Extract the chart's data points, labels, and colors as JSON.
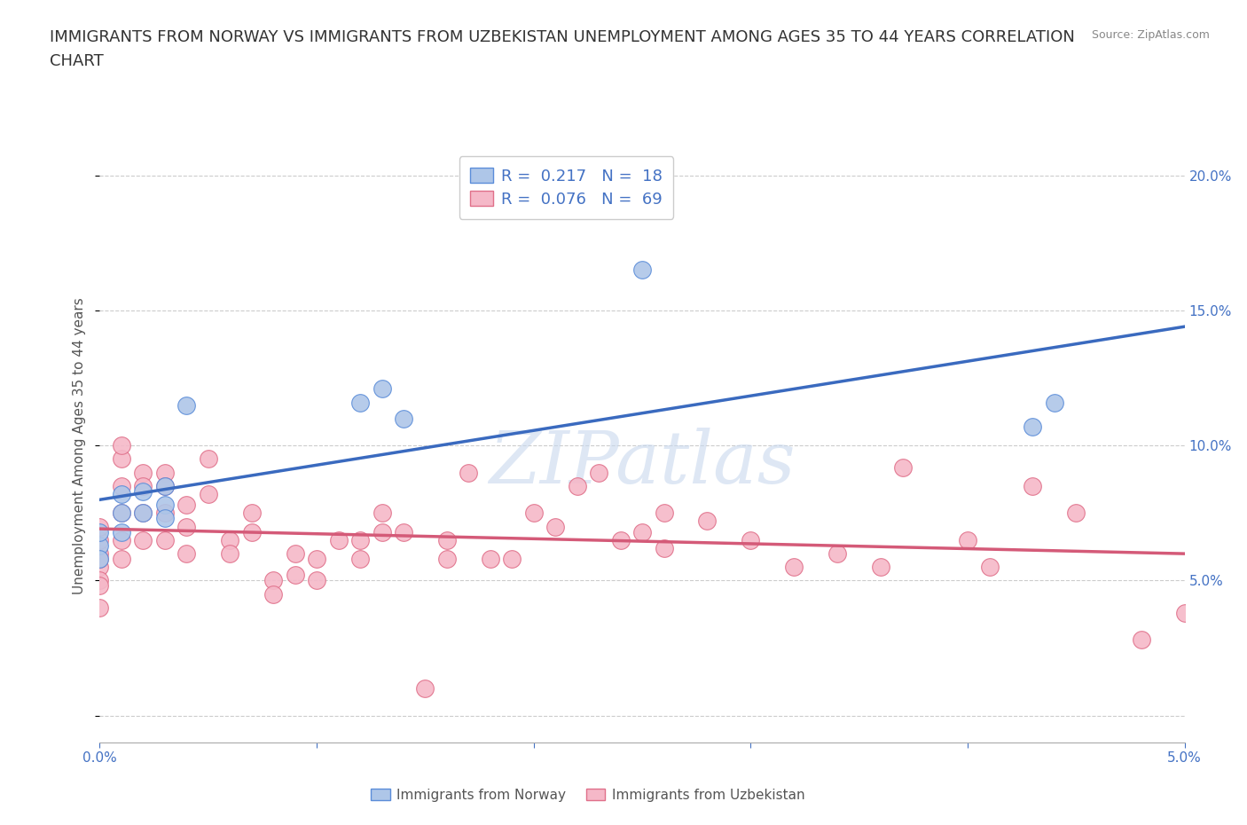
{
  "title_line1": "IMMIGRANTS FROM NORWAY VS IMMIGRANTS FROM UZBEKISTAN UNEMPLOYMENT AMONG AGES 35 TO 44 YEARS CORRELATION",
  "title_line2": "CHART",
  "source_text": "Source: ZipAtlas.com",
  "ylabel": "Unemployment Among Ages 35 to 44 years",
  "xlim": [
    0.0,
    0.05
  ],
  "ylim": [
    -0.01,
    0.21
  ],
  "xticks": [
    0.0,
    0.01,
    0.02,
    0.03,
    0.04,
    0.05
  ],
  "xtick_labels": [
    "0.0%",
    "",
    "",
    "",
    "",
    "5.0%"
  ],
  "yticks": [
    0.0,
    0.05,
    0.1,
    0.15,
    0.2
  ],
  "ytick_labels": [
    "",
    "5.0%",
    "10.0%",
    "15.0%",
    "20.0%"
  ],
  "norway_R": 0.217,
  "norway_N": 18,
  "uzbekistan_R": 0.076,
  "uzbekistan_N": 69,
  "norway_color": "#aec6e8",
  "norway_edge_color": "#5b8dd9",
  "norway_line_color": "#3a6abf",
  "uzbekistan_color": "#f5b8c8",
  "uzbekistan_edge_color": "#e0708a",
  "uzbekistan_line_color": "#d45a78",
  "legend_label_norway": "Immigrants from Norway",
  "legend_label_uzbekistan": "Immigrants from Uzbekistan",
  "norway_x": [
    0.0,
    0.0,
    0.0,
    0.001,
    0.001,
    0.001,
    0.002,
    0.002,
    0.003,
    0.003,
    0.003,
    0.004,
    0.012,
    0.013,
    0.014,
    0.025,
    0.043,
    0.044
  ],
  "norway_y": [
    0.063,
    0.068,
    0.058,
    0.075,
    0.082,
    0.068,
    0.083,
    0.075,
    0.078,
    0.085,
    0.073,
    0.115,
    0.116,
    0.121,
    0.11,
    0.165,
    0.107,
    0.116
  ],
  "uzbekistan_x": [
    0.0,
    0.0,
    0.0,
    0.0,
    0.0,
    0.0,
    0.0,
    0.0,
    0.001,
    0.001,
    0.001,
    0.001,
    0.001,
    0.001,
    0.002,
    0.002,
    0.002,
    0.002,
    0.003,
    0.003,
    0.003,
    0.003,
    0.004,
    0.004,
    0.004,
    0.005,
    0.005,
    0.006,
    0.006,
    0.007,
    0.007,
    0.008,
    0.008,
    0.009,
    0.009,
    0.01,
    0.01,
    0.011,
    0.012,
    0.012,
    0.013,
    0.013,
    0.014,
    0.015,
    0.016,
    0.016,
    0.017,
    0.018,
    0.019,
    0.02,
    0.021,
    0.022,
    0.023,
    0.024,
    0.025,
    0.026,
    0.026,
    0.028,
    0.03,
    0.032,
    0.034,
    0.036,
    0.037,
    0.04,
    0.041,
    0.043,
    0.045,
    0.048,
    0.05
  ],
  "uzbekistan_y": [
    0.06,
    0.065,
    0.07,
    0.055,
    0.05,
    0.058,
    0.048,
    0.04,
    0.095,
    0.1,
    0.085,
    0.075,
    0.065,
    0.058,
    0.09,
    0.085,
    0.075,
    0.065,
    0.09,
    0.085,
    0.075,
    0.065,
    0.078,
    0.07,
    0.06,
    0.095,
    0.082,
    0.065,
    0.06,
    0.075,
    0.068,
    0.05,
    0.045,
    0.06,
    0.052,
    0.058,
    0.05,
    0.065,
    0.065,
    0.058,
    0.075,
    0.068,
    0.068,
    0.01,
    0.065,
    0.058,
    0.09,
    0.058,
    0.058,
    0.075,
    0.07,
    0.085,
    0.09,
    0.065,
    0.068,
    0.062,
    0.075,
    0.072,
    0.065,
    0.055,
    0.06,
    0.055,
    0.092,
    0.065,
    0.055,
    0.085,
    0.075,
    0.028,
    0.038
  ],
  "background_color": "#ffffff",
  "grid_color": "#cccccc",
  "watermark_text": "ZIPatlas",
  "title_fontsize": 13,
  "label_fontsize": 11,
  "tick_fontsize": 11,
  "marker_size": 200
}
